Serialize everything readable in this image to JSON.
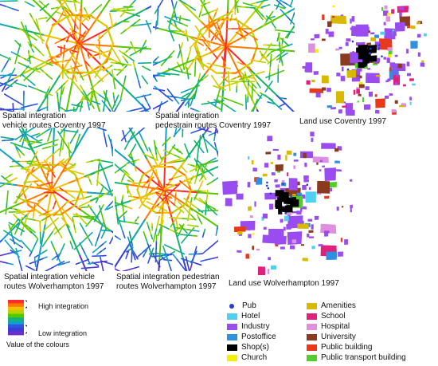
{
  "maps": [
    {
      "caption_line1": "Spatial integration",
      "caption_line2": "vehicle routes Coventry 1997"
    },
    {
      "caption_line1": "Spatial integration",
      "caption_line2": "pedestrain routes Coventry 1997"
    },
    {
      "caption_line1": "Land use Coventry 1997",
      "caption_line2": ""
    },
    {
      "caption_line1": "Spatial integration vehicle",
      "caption_line2": "routes Wolverhampton 1997"
    },
    {
      "caption_line1": "Spatial integration pedestrian",
      "caption_line2": "routes Wolverhampton 1997"
    },
    {
      "caption_line1": "Land use Wolverhampton 1997",
      "caption_line2": ""
    }
  ],
  "integration_scale": {
    "high_label": "High integration",
    "low_label": "Low integration",
    "caption": "Value of the colours",
    "colors": [
      "#ff2a2a",
      "#ff7a00",
      "#f2c200",
      "#b6d400",
      "#55c800",
      "#14b46e",
      "#10a0c8",
      "#2e55e0",
      "#3b3bd6",
      "#6a2fc8"
    ]
  },
  "land_use_legend": [
    {
      "label": "Pub",
      "color": "#1f3fd6",
      "shape": "dot"
    },
    {
      "label": "Hotel",
      "color": "#4fd0f0",
      "shape": "square"
    },
    {
      "label": "Industry",
      "color": "#9a4cf0",
      "shape": "square"
    },
    {
      "label": "Postoffice",
      "color": "#2f8fe0",
      "shape": "square"
    },
    {
      "label": "Shop(s)",
      "color": "#000000",
      "shape": "square"
    },
    {
      "label": "Church",
      "color": "#f6f000",
      "shape": "square"
    },
    {
      "label": "Amenities",
      "color": "#d9b800",
      "shape": "square"
    },
    {
      "label": "School",
      "color": "#e0207a",
      "shape": "square"
    },
    {
      "label": "Hospital",
      "color": "#e08ee0",
      "shape": "square"
    },
    {
      "label": "University",
      "color": "#8a3a1e",
      "shape": "square"
    },
    {
      "label": "Public building",
      "color": "#e83a1a",
      "shape": "square"
    },
    {
      "label": "Public transport building",
      "color": "#4fcf2a",
      "shape": "square"
    }
  ]
}
